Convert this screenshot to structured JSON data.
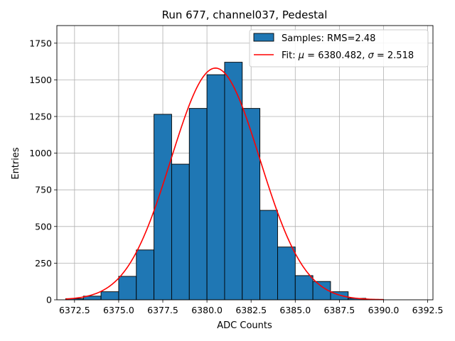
{
  "chart_data": {
    "type": "bar",
    "title": "Run 677, channel037, Pedestal",
    "xlabel": "ADC Counts",
    "ylabel": "Entries",
    "xlim": [
      6371.5,
      6392.8
    ],
    "ylim": [
      0,
      1870
    ],
    "xticks": [
      6372.5,
      6375.0,
      6377.5,
      6380.0,
      6382.5,
      6385.0,
      6387.5,
      6390.0,
      6392.5
    ],
    "xtick_labels": [
      "6372.5",
      "6375.0",
      "6377.5",
      "6380.0",
      "6382.5",
      "6385.0",
      "6387.5",
      "6390.0",
      "6392.5"
    ],
    "yticks": [
      0,
      250,
      500,
      750,
      1000,
      1250,
      1500,
      1750
    ],
    "ytick_labels": [
      "0",
      "250",
      "500",
      "750",
      "1000",
      "1250",
      "1500",
      "1750"
    ],
    "grid": true,
    "legend_position": "top-right",
    "bar_color": "#1f77b4",
    "fit_color": "#ff0000",
    "histogram": {
      "name": "Samples: RMS=2.48",
      "bins": [
        {
          "x0": 6372,
          "x1": 6373,
          "value": 8
        },
        {
          "x0": 6373,
          "x1": 6374,
          "value": 25
        },
        {
          "x0": 6374,
          "x1": 6375,
          "value": 55
        },
        {
          "x0": 6375,
          "x1": 6376,
          "value": 160
        },
        {
          "x0": 6376,
          "x1": 6377,
          "value": 340
        },
        {
          "x0": 6377,
          "x1": 6378,
          "value": 1265
        },
        {
          "x0": 6378,
          "x1": 6379,
          "value": 925
        },
        {
          "x0": 6379,
          "x1": 6380,
          "value": 1305
        },
        {
          "x0": 6380,
          "x1": 6381,
          "value": 1535
        },
        {
          "x0": 6381,
          "x1": 6382,
          "value": 1620
        },
        {
          "x0": 6382,
          "x1": 6383,
          "value": 1305
        },
        {
          "x0": 6383,
          "x1": 6384,
          "value": 610
        },
        {
          "x0": 6384,
          "x1": 6385,
          "value": 360
        },
        {
          "x0": 6385,
          "x1": 6386,
          "value": 165
        },
        {
          "x0": 6386,
          "x1": 6387,
          "value": 125
        },
        {
          "x0": 6387,
          "x1": 6388,
          "value": 55
        },
        {
          "x0": 6388,
          "x1": 6389,
          "value": 10
        },
        {
          "x0": 6389,
          "x1": 6390,
          "value": 3
        }
      ]
    },
    "fit": {
      "name": "Fit: μ = 6380.482, σ = 2.518",
      "label_prefix": "Fit: ",
      "mu_symbol": "μ",
      "mu_text": " = 6380.482, ",
      "sigma_symbol": "σ",
      "sigma_text": " = 2.518",
      "mu": 6380.482,
      "sigma": 2.518,
      "amplitude": 1580,
      "x_range": [
        6372,
        6390
      ]
    }
  }
}
